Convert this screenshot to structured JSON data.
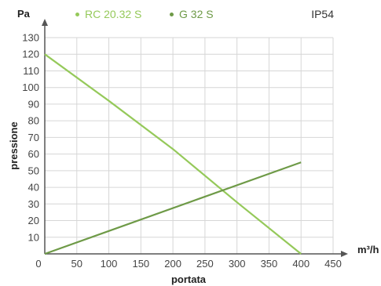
{
  "ip_rating": "IP54",
  "chart_data": {
    "type": "line",
    "xlabel": "portata",
    "ylabel": "pressione",
    "x_unit": "m³/h",
    "y_unit": "Pa",
    "xlim": [
      0,
      450
    ],
    "ylim": [
      0,
      130
    ],
    "x_ticks": [
      0,
      50,
      100,
      150,
      200,
      250,
      300,
      350,
      400,
      450
    ],
    "y_ticks": [
      10,
      20,
      30,
      40,
      50,
      60,
      70,
      80,
      90,
      100,
      110,
      120,
      130
    ],
    "grid": true,
    "legend_position": "top",
    "series": [
      {
        "name": "RC 20.32 S",
        "color": "#95c95a",
        "x": [
          0,
          100,
          200,
          300,
          400
        ],
        "y": [
          120,
          92,
          63,
          31,
          0
        ]
      },
      {
        "name": "G 32 S",
        "color": "#6e9a47",
        "x": [
          0,
          400
        ],
        "y": [
          0,
          55
        ]
      }
    ]
  }
}
